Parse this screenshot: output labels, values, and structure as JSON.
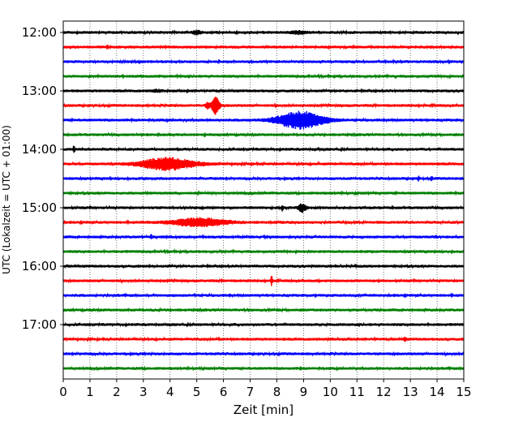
{
  "chart_data": {
    "type": "line",
    "title": "",
    "xlabel": "Zeit  [min]",
    "ylabel": "UTC (Lokalzeit = UTC + 01:00)",
    "xlim": [
      0,
      15
    ],
    "x_ticks": [
      "0",
      "1",
      "2",
      "3",
      "4",
      "5",
      "6",
      "7",
      "8",
      "9",
      "10",
      "11",
      "12",
      "13",
      "14",
      "15"
    ],
    "y_ticks": [
      "12:00",
      "13:00",
      "14:00",
      "15:00",
      "16:00",
      "17:00"
    ],
    "grid": "vertical dotted at each minute",
    "trace_interval_minutes": 15,
    "trace_colors": [
      "#000000",
      "#ff0000",
      "#0000ff",
      "#008000"
    ],
    "traces": [
      {
        "label": "12:00",
        "color": "#000000",
        "events": [
          {
            "t": 5.0,
            "amp": 0.25,
            "dur": 0.2
          },
          {
            "t": 8.8,
            "amp": 0.2,
            "dur": 0.4
          }
        ]
      },
      {
        "label": "12:15",
        "color": "#ff0000",
        "events": []
      },
      {
        "label": "12:30",
        "color": "#0000ff",
        "events": []
      },
      {
        "label": "12:45",
        "color": "#008000",
        "events": []
      },
      {
        "label": "13:00",
        "color": "#000000",
        "events": [
          {
            "t": 3.5,
            "amp": 0.15,
            "dur": 0.2
          }
        ]
      },
      {
        "label": "13:15",
        "color": "#ff0000",
        "events": [
          {
            "t": 5.4,
            "amp": 0.4,
            "dur": 0.1
          },
          {
            "t": 5.7,
            "amp": 1.3,
            "dur": 0.2
          }
        ]
      },
      {
        "label": "13:30",
        "color": "#0000ff",
        "events": [
          {
            "t": 8.9,
            "amp": 1.3,
            "dur": 1.2
          }
        ]
      },
      {
        "label": "13:45",
        "color": "#008000",
        "events": []
      },
      {
        "label": "14:00",
        "color": "#000000",
        "events": [
          {
            "t": 0.4,
            "amp": 0.45,
            "dur": 0.05
          }
        ]
      },
      {
        "label": "14:15",
        "color": "#ff0000",
        "events": [
          {
            "t": 3.9,
            "amp": 0.9,
            "dur": 1.4
          }
        ]
      },
      {
        "label": "14:30",
        "color": "#0000ff",
        "events": [
          {
            "t": 13.3,
            "amp": 0.3,
            "dur": 0.05
          },
          {
            "t": 13.8,
            "amp": 0.4,
            "dur": 0.05
          }
        ]
      },
      {
        "label": "14:45",
        "color": "#008000",
        "events": []
      },
      {
        "label": "15:00",
        "color": "#000000",
        "events": [
          {
            "t": 8.2,
            "amp": 0.45,
            "dur": 0.05
          },
          {
            "t": 8.95,
            "amp": 0.6,
            "dur": 0.2
          }
        ]
      },
      {
        "label": "15:15",
        "color": "#ff0000",
        "events": [
          {
            "t": 5.1,
            "amp": 0.6,
            "dur": 1.4
          }
        ]
      },
      {
        "label": "15:30",
        "color": "#0000ff",
        "events": [
          {
            "t": 3.3,
            "amp": 0.3,
            "dur": 0.05
          }
        ]
      },
      {
        "label": "15:45",
        "color": "#008000",
        "events": []
      },
      {
        "label": "16:00",
        "color": "#000000",
        "events": []
      },
      {
        "label": "16:15",
        "color": "#ff0000",
        "events": [
          {
            "t": 7.8,
            "amp": 0.7,
            "dur": 0.05
          }
        ]
      },
      {
        "label": "16:30",
        "color": "#0000ff",
        "events": []
      },
      {
        "label": "16:45",
        "color": "#008000",
        "events": []
      },
      {
        "label": "17:00",
        "color": "#000000",
        "events": []
      },
      {
        "label": "17:15",
        "color": "#ff0000",
        "events": [
          {
            "t": 12.8,
            "amp": 0.3,
            "dur": 0.05
          }
        ]
      },
      {
        "label": "17:30",
        "color": "#0000ff",
        "events": []
      },
      {
        "label": "17:45",
        "color": "#008000",
        "events": [
          {
            "t": 8.9,
            "amp": 0.2,
            "dur": 0.05
          }
        ]
      }
    ]
  }
}
